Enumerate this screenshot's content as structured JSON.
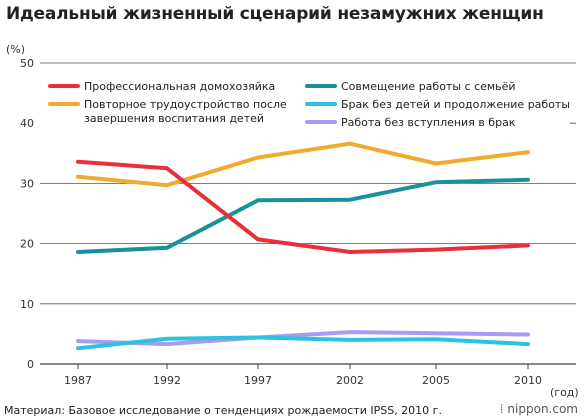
{
  "title": "Идеальный жизненный сценарий незамужних женщин",
  "source": "Материал: Базовое исследование о тенденциях рождаемости IPSS, 2010 г.",
  "logo": "nippon.com",
  "chart_data": {
    "type": "line",
    "ylabel": "(%)",
    "xlabel": "(год)",
    "ylim": [
      0,
      50
    ],
    "yticks": [
      0,
      10,
      20,
      30,
      40,
      50
    ],
    "categories": [
      "1987",
      "1992",
      "1997",
      "2002",
      "2005",
      "2010"
    ],
    "grid": true,
    "legend": "top",
    "series": [
      {
        "name": "Профессиональная домохозяйка",
        "color": "#e8303a",
        "values": [
          33.6,
          32.5,
          20.7,
          18.6,
          19.0,
          19.7
        ]
      },
      {
        "name": "Совмещение работы с семьёй",
        "color": "#16939a",
        "values": [
          18.6,
          19.3,
          27.2,
          27.3,
          30.2,
          30.6
        ]
      },
      {
        "name": [
          "Повторное трудоустройство после",
          "завершения воспитания детей"
        ],
        "color": "#f2aa2e",
        "values": [
          31.1,
          29.7,
          34.3,
          36.6,
          33.3,
          35.2
        ]
      },
      {
        "name": "Брак без детей и продолжение работы",
        "color": "#2bc4de",
        "values": [
          2.6,
          4.2,
          4.4,
          4.0,
          4.1,
          3.3
        ]
      },
      {
        "name": "Работа без вступления в брак",
        "color": "#a89cf0",
        "values": [
          3.8,
          3.3,
          4.4,
          5.3,
          5.1,
          4.9
        ]
      }
    ]
  }
}
